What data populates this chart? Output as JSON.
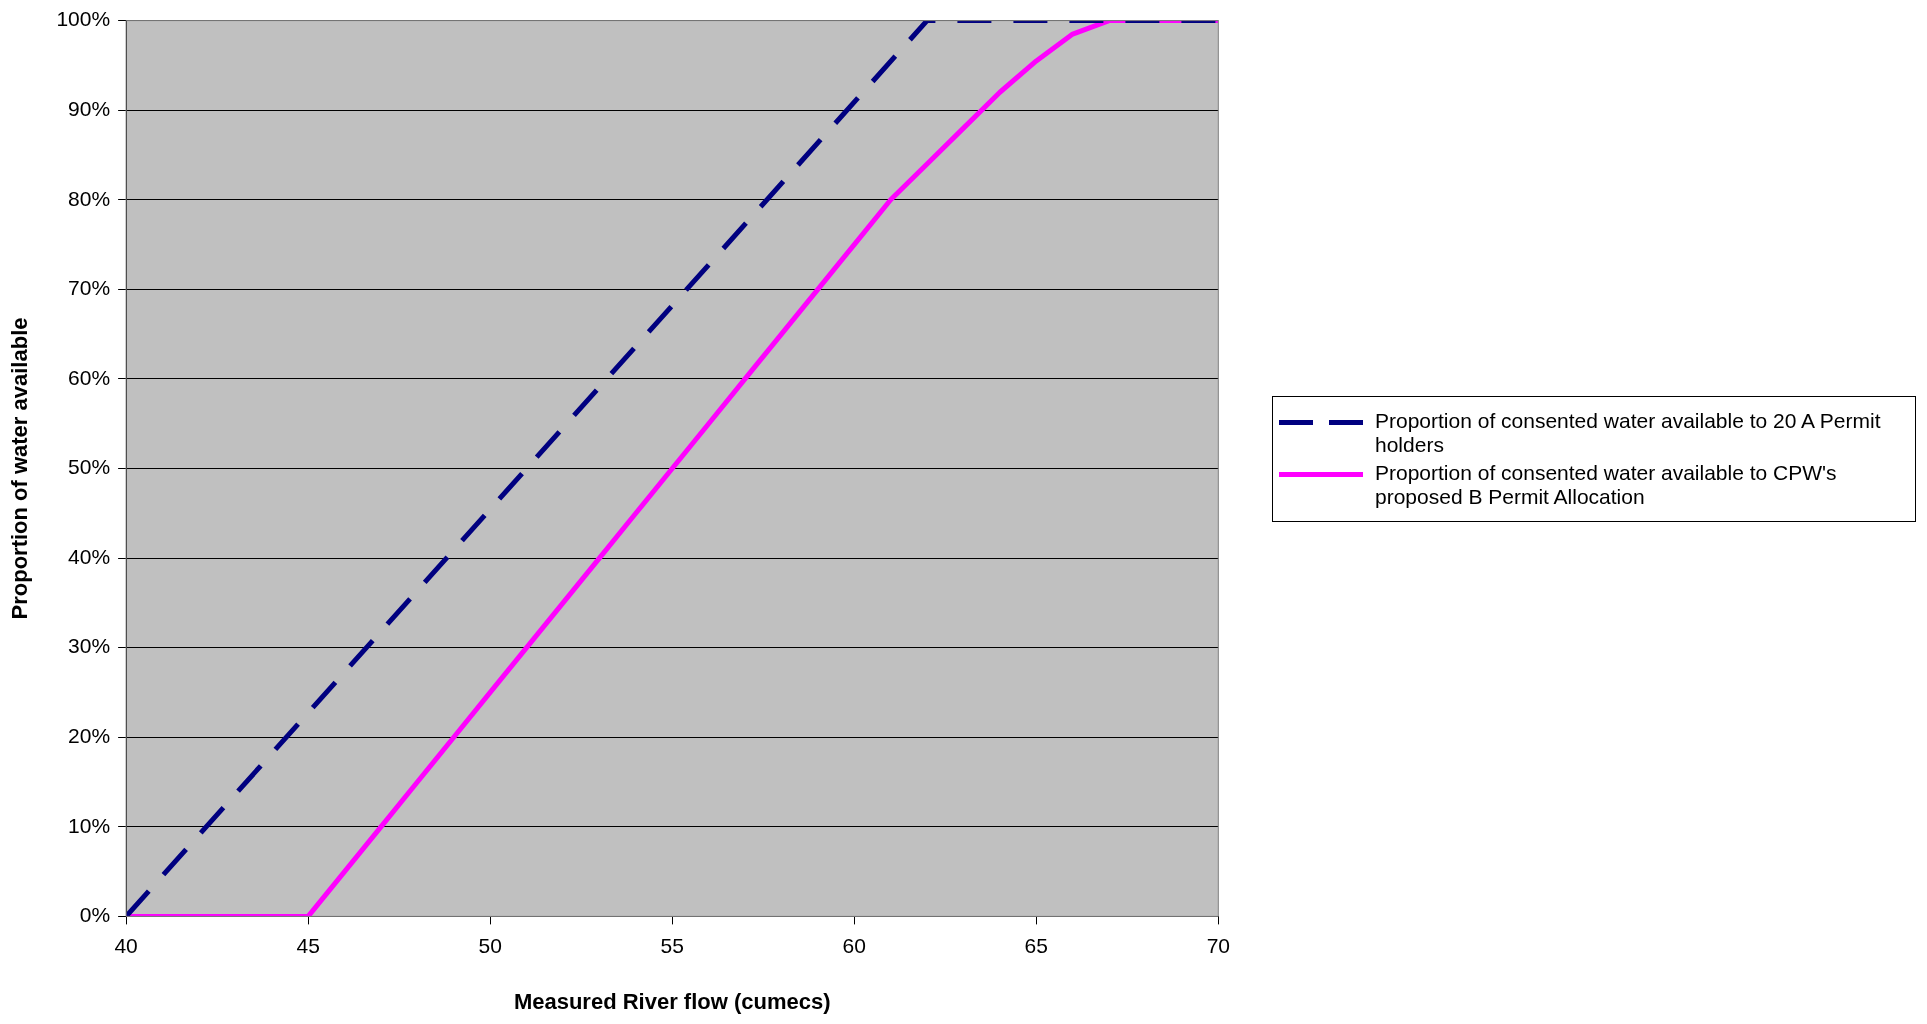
{
  "chart_data": {
    "type": "line",
    "xlabel": "Measured River flow (cumecs)",
    "ylabel": "Proportion of water available",
    "series": [
      {
        "name": "Proportion of consented water available to 20 A Permit holders",
        "color": "#000080",
        "line_style": "dashed",
        "x": [
          40,
          62,
          70
        ],
        "values": [
          0,
          100,
          100
        ]
      },
      {
        "name": "Proportion of consented water available to CPW's proposed B Permit Allocation",
        "color": "#ff00ff",
        "line_style": "solid",
        "x": [
          40,
          45,
          46,
          47,
          48,
          49,
          50,
          51,
          52,
          53,
          54,
          55,
          56,
          57,
          58,
          59,
          60,
          61,
          62,
          63,
          64,
          65,
          66,
          67,
          70
        ],
        "values": [
          0,
          0,
          5,
          10,
          15,
          20,
          25,
          30,
          35,
          40,
          45,
          50,
          55,
          60,
          65,
          70,
          75,
          80,
          84,
          88,
          92,
          95.5,
          98.5,
          100,
          100
        ]
      }
    ],
    "xlim": [
      40,
      70
    ],
    "xticks": [
      40,
      45,
      50,
      55,
      60,
      65,
      70
    ],
    "ylim": [
      0,
      100
    ],
    "yticks": [
      {
        "value": 0,
        "label": "0%"
      },
      {
        "value": 10,
        "label": "10%"
      },
      {
        "value": 20,
        "label": "20%"
      },
      {
        "value": 30,
        "label": "30%"
      },
      {
        "value": 40,
        "label": "40%"
      },
      {
        "value": 50,
        "label": "50%"
      },
      {
        "value": 60,
        "label": "60%"
      },
      {
        "value": 70,
        "label": "70%"
      },
      {
        "value": 80,
        "label": "80%"
      },
      {
        "value": 90,
        "label": "90%"
      },
      {
        "value": 100,
        "label": "100%"
      }
    ],
    "grid": "y",
    "legend": "right",
    "marker": "none"
  }
}
